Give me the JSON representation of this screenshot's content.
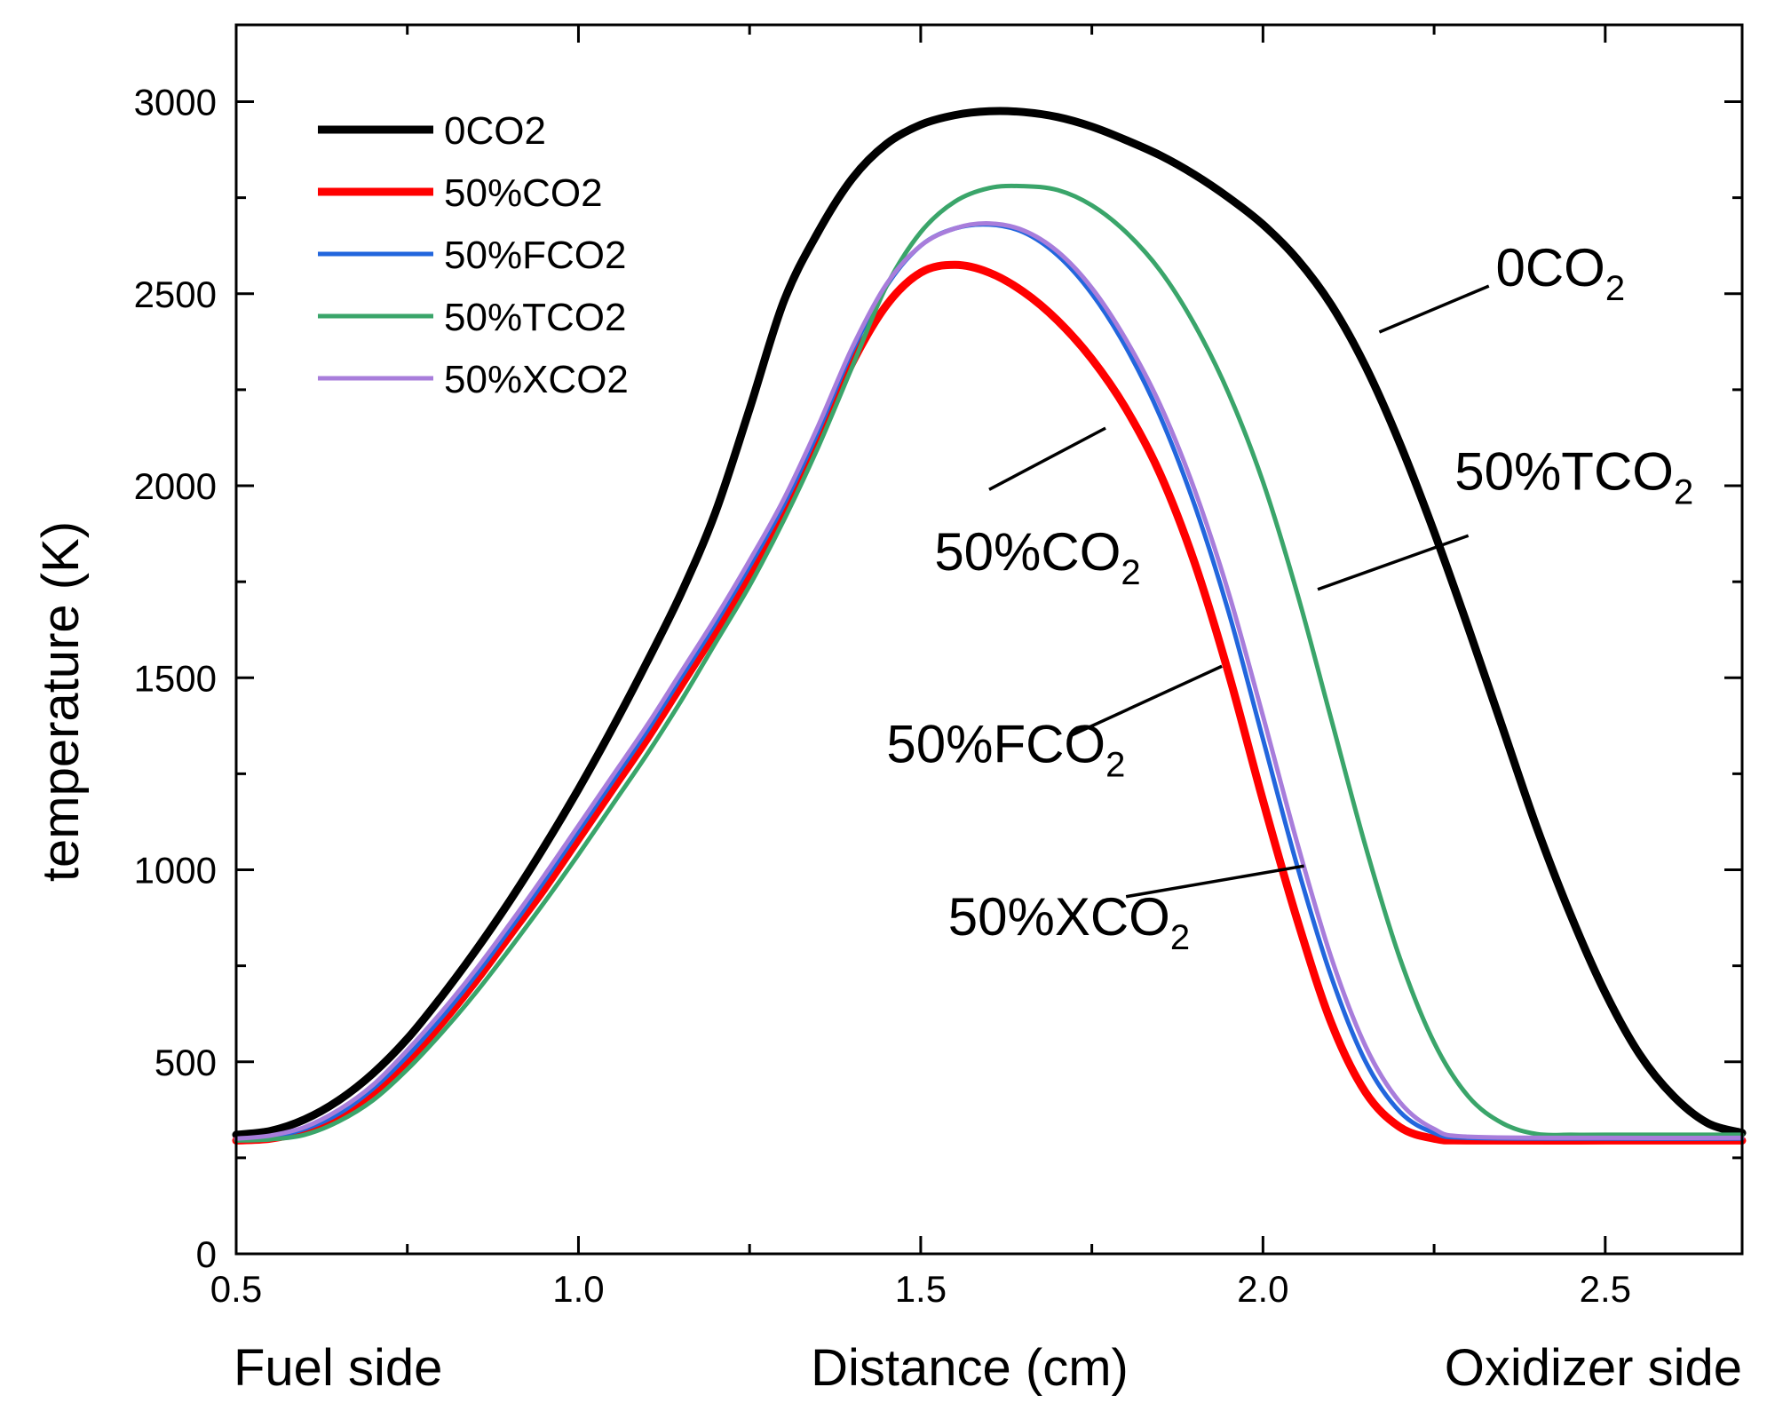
{
  "chart_data": {
    "type": "line",
    "title": "",
    "xlabel": "Distance (cm)",
    "ylabel": "temperature (K)",
    "x_side_labels": {
      "left": "Fuel side",
      "right": "Oxidizer side"
    },
    "xlim": [
      0.5,
      2.7
    ],
    "ylim": [
      0,
      3200
    ],
    "x_ticks": [
      0.5,
      1.0,
      1.5,
      2.0,
      2.5
    ],
    "x_tick_labels": [
      "0.5",
      "1.0",
      "1.5",
      "2.0",
      "2.5"
    ],
    "y_ticks": [
      0,
      500,
      1000,
      1500,
      2000,
      2500,
      3000
    ],
    "y_tick_labels": [
      "0",
      "500",
      "1000",
      "1500",
      "2000",
      "2500",
      "3000"
    ],
    "grid": false,
    "legend_position": "top-left",
    "series": [
      {
        "name": "0CO2",
        "color": "#000000",
        "width": 9,
        "points": [
          [
            0.5,
            310
          ],
          [
            0.55,
            320
          ],
          [
            0.6,
            350
          ],
          [
            0.65,
            400
          ],
          [
            0.7,
            470
          ],
          [
            0.75,
            560
          ],
          [
            0.8,
            670
          ],
          [
            0.85,
            790
          ],
          [
            0.9,
            920
          ],
          [
            0.95,
            1060
          ],
          [
            1.0,
            1210
          ],
          [
            1.05,
            1370
          ],
          [
            1.1,
            1540
          ],
          [
            1.15,
            1720
          ],
          [
            1.2,
            1930
          ],
          [
            1.25,
            2200
          ],
          [
            1.3,
            2480
          ],
          [
            1.35,
            2660
          ],
          [
            1.4,
            2800
          ],
          [
            1.45,
            2890
          ],
          [
            1.5,
            2940
          ],
          [
            1.55,
            2965
          ],
          [
            1.6,
            2975
          ],
          [
            1.65,
            2973
          ],
          [
            1.7,
            2960
          ],
          [
            1.75,
            2935
          ],
          [
            1.8,
            2900
          ],
          [
            1.85,
            2860
          ],
          [
            1.9,
            2810
          ],
          [
            1.95,
            2750
          ],
          [
            2.0,
            2680
          ],
          [
            2.05,
            2590
          ],
          [
            2.1,
            2470
          ],
          [
            2.15,
            2310
          ],
          [
            2.2,
            2110
          ],
          [
            2.25,
            1880
          ],
          [
            2.3,
            1630
          ],
          [
            2.35,
            1370
          ],
          [
            2.4,
            1110
          ],
          [
            2.45,
            880
          ],
          [
            2.5,
            680
          ],
          [
            2.55,
            520
          ],
          [
            2.6,
            410
          ],
          [
            2.65,
            340
          ],
          [
            2.7,
            315
          ]
        ]
      },
      {
        "name": "50%CO2",
        "color": "#ff0000",
        "width": 9,
        "points": [
          [
            0.5,
            295
          ],
          [
            0.55,
            300
          ],
          [
            0.6,
            320
          ],
          [
            0.65,
            360
          ],
          [
            0.7,
            420
          ],
          [
            0.75,
            500
          ],
          [
            0.8,
            600
          ],
          [
            0.85,
            710
          ],
          [
            0.9,
            830
          ],
          [
            0.95,
            950
          ],
          [
            1.0,
            1080
          ],
          [
            1.05,
            1210
          ],
          [
            1.1,
            1340
          ],
          [
            1.15,
            1480
          ],
          [
            1.2,
            1620
          ],
          [
            1.25,
            1770
          ],
          [
            1.3,
            1930
          ],
          [
            1.35,
            2120
          ],
          [
            1.4,
            2320
          ],
          [
            1.45,
            2470
          ],
          [
            1.5,
            2555
          ],
          [
            1.55,
            2575
          ],
          [
            1.6,
            2555
          ],
          [
            1.65,
            2505
          ],
          [
            1.7,
            2430
          ],
          [
            1.75,
            2330
          ],
          [
            1.8,
            2200
          ],
          [
            1.85,
            2030
          ],
          [
            1.9,
            1800
          ],
          [
            1.95,
            1510
          ],
          [
            2.0,
            1180
          ],
          [
            2.05,
            870
          ],
          [
            2.1,
            600
          ],
          [
            2.15,
            420
          ],
          [
            2.2,
            330
          ],
          [
            2.25,
            300
          ],
          [
            2.3,
            295
          ],
          [
            2.5,
            295
          ],
          [
            2.7,
            295
          ]
        ]
      },
      {
        "name": "50%FCO2",
        "color": "#2266dd",
        "width": 5,
        "points": [
          [
            0.5,
            300
          ],
          [
            0.55,
            305
          ],
          [
            0.6,
            325
          ],
          [
            0.65,
            365
          ],
          [
            0.7,
            430
          ],
          [
            0.75,
            515
          ],
          [
            0.8,
            615
          ],
          [
            0.85,
            725
          ],
          [
            0.9,
            845
          ],
          [
            0.95,
            970
          ],
          [
            1.0,
            1100
          ],
          [
            1.05,
            1230
          ],
          [
            1.1,
            1360
          ],
          [
            1.15,
            1500
          ],
          [
            1.2,
            1640
          ],
          [
            1.25,
            1790
          ],
          [
            1.3,
            1950
          ],
          [
            1.35,
            2140
          ],
          [
            1.4,
            2350
          ],
          [
            1.45,
            2520
          ],
          [
            1.5,
            2625
          ],
          [
            1.55,
            2670
          ],
          [
            1.6,
            2680
          ],
          [
            1.65,
            2660
          ],
          [
            1.7,
            2600
          ],
          [
            1.75,
            2500
          ],
          [
            1.8,
            2360
          ],
          [
            1.85,
            2180
          ],
          [
            1.9,
            1950
          ],
          [
            1.95,
            1670
          ],
          [
            2.0,
            1340
          ],
          [
            2.05,
            1010
          ],
          [
            2.1,
            720
          ],
          [
            2.15,
            500
          ],
          [
            2.2,
            370
          ],
          [
            2.25,
            315
          ],
          [
            2.3,
            302
          ],
          [
            2.5,
            300
          ],
          [
            2.7,
            300
          ]
        ]
      },
      {
        "name": "50%TCO2",
        "color": "#3aa56a",
        "width": 5,
        "points": [
          [
            0.5,
            295
          ],
          [
            0.55,
            298
          ],
          [
            0.6,
            310
          ],
          [
            0.65,
            345
          ],
          [
            0.7,
            400
          ],
          [
            0.75,
            480
          ],
          [
            0.8,
            575
          ],
          [
            0.85,
            680
          ],
          [
            0.9,
            795
          ],
          [
            0.95,
            915
          ],
          [
            1.0,
            1040
          ],
          [
            1.05,
            1170
          ],
          [
            1.1,
            1300
          ],
          [
            1.15,
            1440
          ],
          [
            1.2,
            1590
          ],
          [
            1.25,
            1740
          ],
          [
            1.3,
            1910
          ],
          [
            1.35,
            2100
          ],
          [
            1.4,
            2310
          ],
          [
            1.45,
            2520
          ],
          [
            1.5,
            2660
          ],
          [
            1.55,
            2740
          ],
          [
            1.6,
            2775
          ],
          [
            1.65,
            2780
          ],
          [
            1.7,
            2770
          ],
          [
            1.75,
            2730
          ],
          [
            1.8,
            2660
          ],
          [
            1.85,
            2560
          ],
          [
            1.9,
            2420
          ],
          [
            1.95,
            2240
          ],
          [
            2.0,
            2010
          ],
          [
            2.05,
            1720
          ],
          [
            2.1,
            1390
          ],
          [
            2.15,
            1060
          ],
          [
            2.2,
            770
          ],
          [
            2.25,
            550
          ],
          [
            2.3,
            410
          ],
          [
            2.35,
            340
          ],
          [
            2.4,
            312
          ],
          [
            2.45,
            310
          ],
          [
            2.5,
            310
          ],
          [
            2.7,
            310
          ]
        ]
      },
      {
        "name": "50%XCO2",
        "color": "#a87ddb",
        "width": 5,
        "points": [
          [
            0.5,
            300
          ],
          [
            0.55,
            308
          ],
          [
            0.6,
            330
          ],
          [
            0.65,
            375
          ],
          [
            0.7,
            440
          ],
          [
            0.75,
            530
          ],
          [
            0.8,
            630
          ],
          [
            0.85,
            740
          ],
          [
            0.9,
            860
          ],
          [
            0.95,
            985
          ],
          [
            1.0,
            1115
          ],
          [
            1.05,
            1245
          ],
          [
            1.1,
            1375
          ],
          [
            1.15,
            1515
          ],
          [
            1.2,
            1655
          ],
          [
            1.25,
            1805
          ],
          [
            1.3,
            1965
          ],
          [
            1.35,
            2155
          ],
          [
            1.4,
            2360
          ],
          [
            1.45,
            2525
          ],
          [
            1.5,
            2625
          ],
          [
            1.55,
            2670
          ],
          [
            1.6,
            2683
          ],
          [
            1.65,
            2665
          ],
          [
            1.7,
            2610
          ],
          [
            1.75,
            2515
          ],
          [
            1.8,
            2380
          ],
          [
            1.85,
            2210
          ],
          [
            1.9,
            1990
          ],
          [
            1.95,
            1720
          ],
          [
            2.0,
            1400
          ],
          [
            2.05,
            1070
          ],
          [
            2.1,
            770
          ],
          [
            2.15,
            540
          ],
          [
            2.2,
            395
          ],
          [
            2.25,
            325
          ],
          [
            2.3,
            305
          ],
          [
            2.5,
            302
          ],
          [
            2.7,
            302
          ]
        ]
      }
    ],
    "annotations": [
      {
        "base": "0CO",
        "sub": "2",
        "label_x": 2.34,
        "label_y": 2520,
        "line": [
          [
            2.33,
            2520
          ],
          [
            2.17,
            2400
          ]
        ]
      },
      {
        "base": "50%TCO",
        "sub": "2",
        "label_x": 2.28,
        "label_y": 1990,
        "line": [
          [
            2.3,
            1870
          ],
          [
            2.08,
            1730
          ]
        ]
      },
      {
        "base": "50%CO",
        "sub": "2",
        "label_x": 1.52,
        "label_y": 1780,
        "line": [
          [
            1.6,
            1990
          ],
          [
            1.77,
            2150
          ]
        ]
      },
      {
        "base": "50%FCO",
        "sub": "2",
        "label_x": 1.45,
        "label_y": 1280,
        "line": [
          [
            1.72,
            1350
          ],
          [
            1.94,
            1530
          ]
        ]
      },
      {
        "base": "50%XCO",
        "sub": "2",
        "label_x": 1.54,
        "label_y": 830,
        "line": [
          [
            1.8,
            930
          ],
          [
            2.06,
            1010
          ]
        ]
      }
    ]
  }
}
